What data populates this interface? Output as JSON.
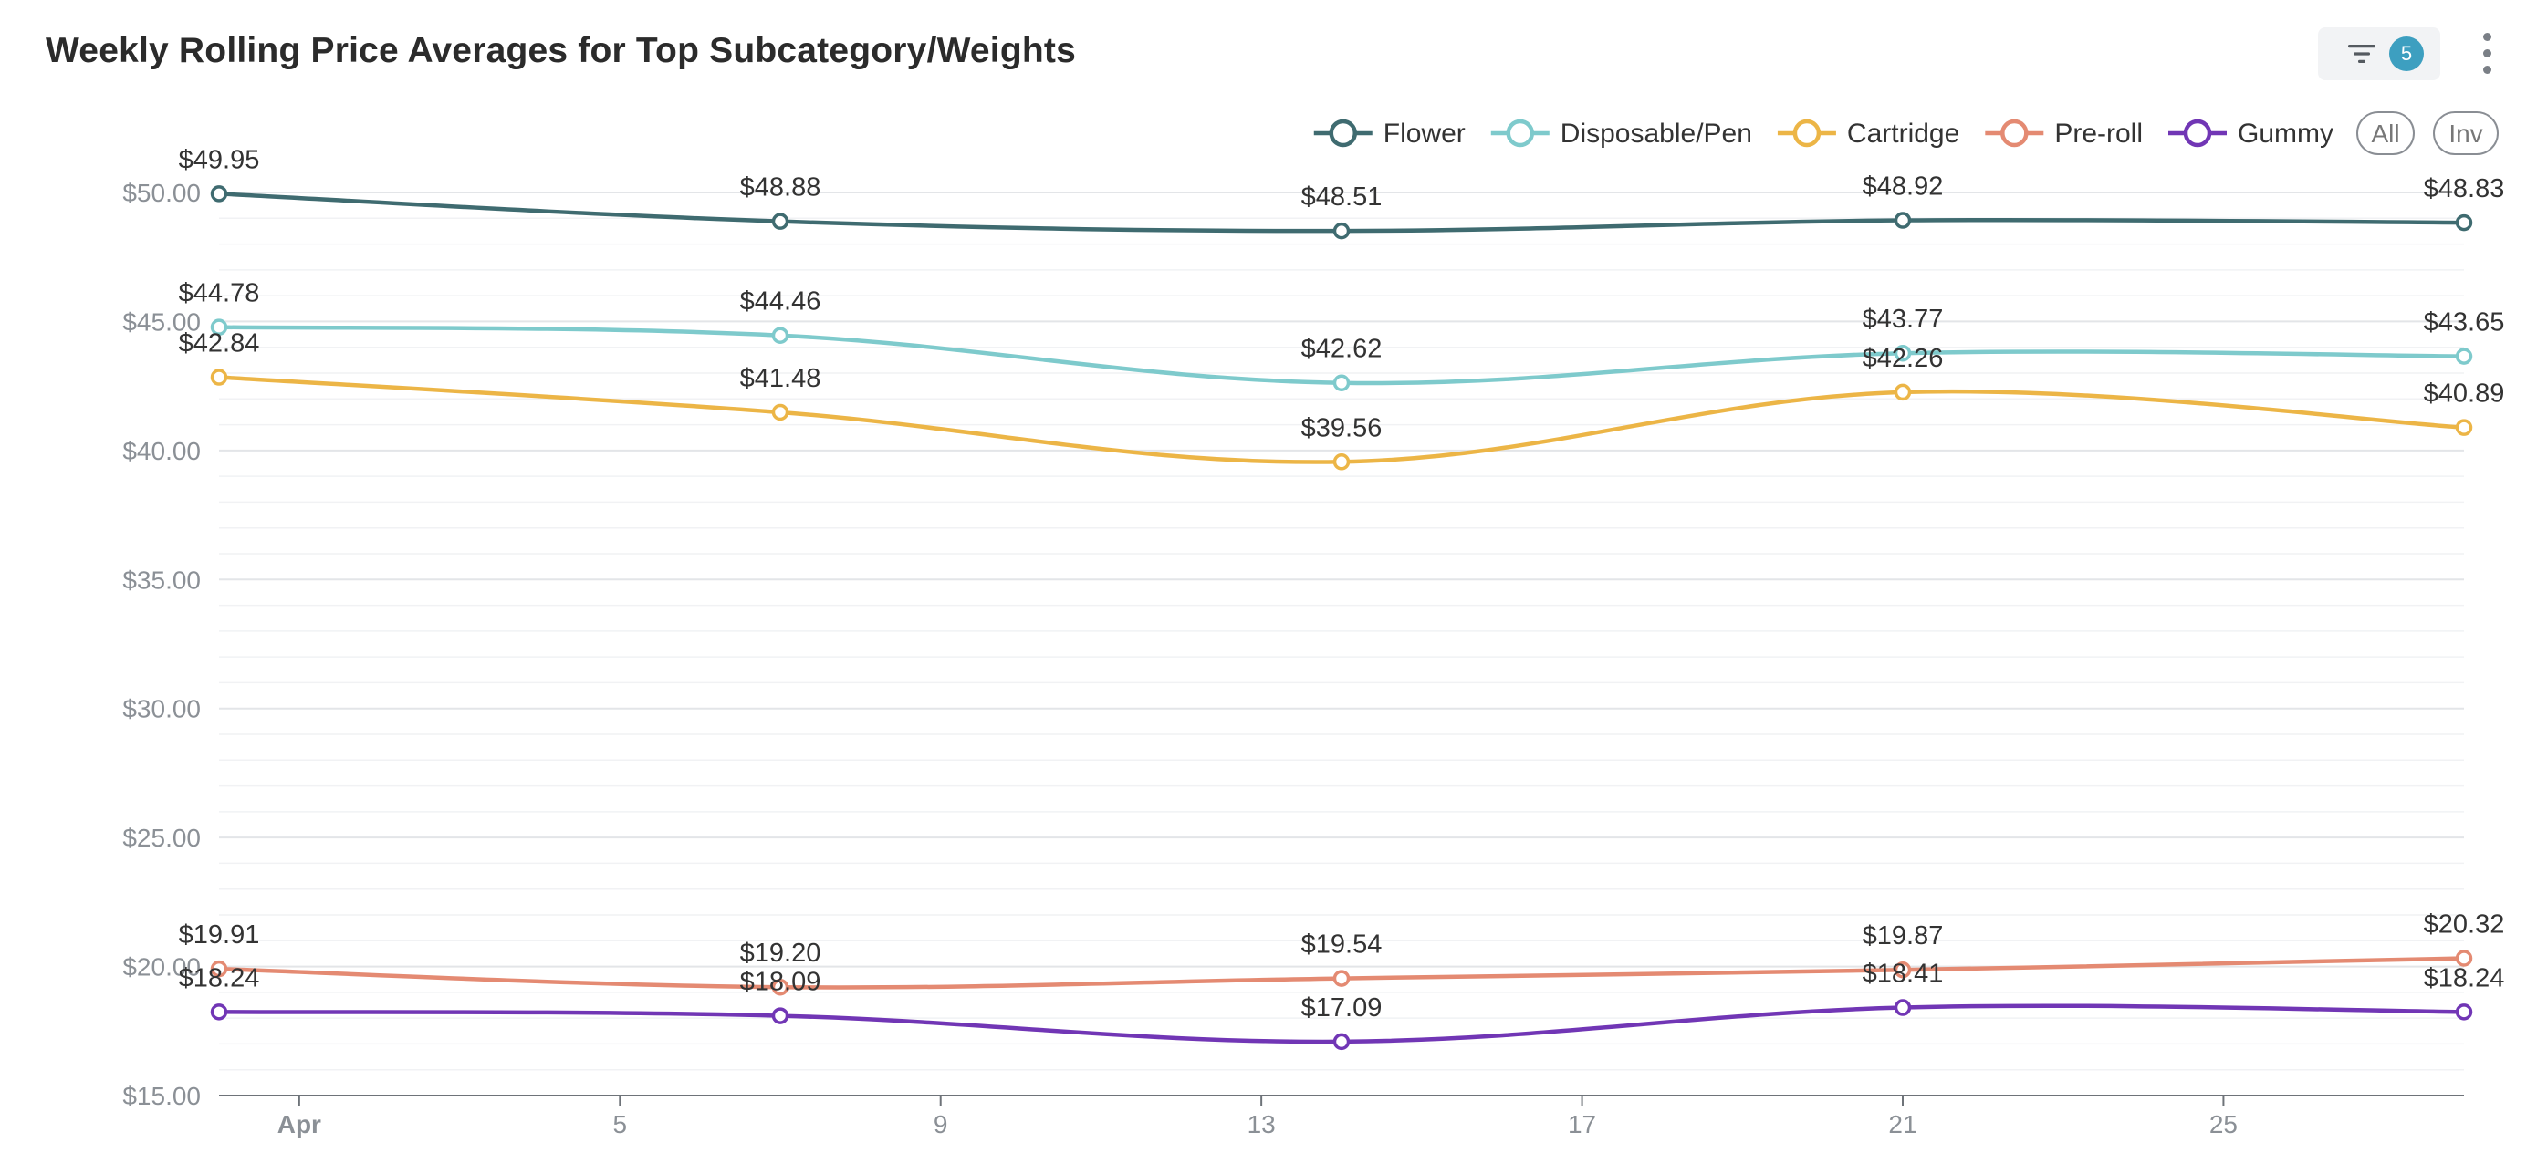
{
  "title": "Weekly Rolling Price Averages for Top Subcategory/Weights",
  "filter": {
    "count": "5",
    "icon": "filter-icon"
  },
  "more_icon": "more-vertical-icon",
  "legend_controls": {
    "all": "All",
    "inv": "Inv"
  },
  "chart_data": {
    "type": "line",
    "title": "Weekly Rolling Price Averages for Top Subcategory/Weights",
    "xlabel": "",
    "ylabel": "",
    "x_axis": {
      "type": "time",
      "range": [
        "2024-03-31",
        "2024-04-28"
      ],
      "ticks": [
        {
          "date": "2024-04-01",
          "label": "Apr",
          "bold": true
        },
        {
          "date": "2024-04-05",
          "label": "5"
        },
        {
          "date": "2024-04-09",
          "label": "9"
        },
        {
          "date": "2024-04-13",
          "label": "13"
        },
        {
          "date": "2024-04-17",
          "label": "17"
        },
        {
          "date": "2024-04-21",
          "label": "21"
        },
        {
          "date": "2024-04-25",
          "label": "25"
        }
      ]
    },
    "ylim": [
      15,
      50
    ],
    "y_ticks": [
      {
        "value": 50,
        "label": "$50.00"
      },
      {
        "value": 45,
        "label": "$45.00"
      },
      {
        "value": 40,
        "label": "$40.00"
      },
      {
        "value": 35,
        "label": "$35.00"
      },
      {
        "value": 30,
        "label": "$30.00"
      },
      {
        "value": 25,
        "label": "$25.00"
      },
      {
        "value": 20,
        "label": "$20.00"
      },
      {
        "value": 15,
        "label": "$15.00"
      }
    ],
    "grid": true,
    "legend_position": "top-right",
    "x": [
      "2024-03-31",
      "2024-04-07",
      "2024-04-14",
      "2024-04-21",
      "2024-04-28"
    ],
    "series": [
      {
        "name": "Flower",
        "color": "#3f6b70",
        "values": [
          49.95,
          48.88,
          48.51,
          48.92,
          48.83
        ],
        "labels": [
          "$49.95",
          "$48.88",
          "$48.51",
          "$48.92",
          "$48.83"
        ]
      },
      {
        "name": "Disposable/Pen",
        "color": "#7ecacc",
        "values": [
          44.78,
          44.46,
          42.62,
          43.77,
          43.65
        ],
        "labels": [
          "$44.78",
          "$44.46",
          "$42.62",
          "$43.77",
          "$43.65"
        ]
      },
      {
        "name": "Cartridge",
        "color": "#ecb546",
        "values": [
          42.84,
          41.48,
          39.56,
          42.26,
          40.89
        ],
        "labels": [
          "$42.84",
          "$41.48",
          "$39.56",
          "$42.26",
          "$40.89"
        ]
      },
      {
        "name": "Pre-roll",
        "color": "#e48a72",
        "values": [
          19.91,
          19.2,
          19.54,
          19.87,
          20.32
        ],
        "labels": [
          "$19.91",
          "$19.20",
          "$19.54",
          "$19.87",
          "$20.32"
        ]
      },
      {
        "name": "Gummy",
        "color": "#7136b5",
        "values": [
          18.24,
          18.09,
          17.09,
          18.41,
          18.24
        ],
        "labels": [
          "$18.24",
          "$18.09",
          "$17.09",
          "$18.41",
          "$18.24"
        ]
      }
    ]
  }
}
